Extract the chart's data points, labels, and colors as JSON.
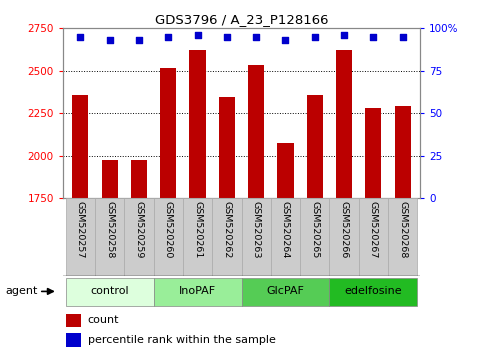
{
  "title": "GDS3796 / A_23_P128166",
  "categories": [
    "GSM520257",
    "GSM520258",
    "GSM520259",
    "GSM520260",
    "GSM520261",
    "GSM520262",
    "GSM520263",
    "GSM520264",
    "GSM520265",
    "GSM520266",
    "GSM520267",
    "GSM520268"
  ],
  "bar_values": [
    2355,
    1975,
    1975,
    2515,
    2620,
    2345,
    2535,
    2075,
    2355,
    2620,
    2280,
    2295
  ],
  "percentile_values": [
    95,
    93,
    93,
    95,
    96,
    95,
    95,
    93,
    95,
    96,
    95,
    95
  ],
  "bar_color": "#bb0000",
  "dot_color": "#0000cc",
  "ylim_left": [
    1750,
    2750
  ],
  "ylim_right": [
    0,
    100
  ],
  "yticks_left": [
    1750,
    2000,
    2250,
    2500,
    2750
  ],
  "yticks_right": [
    0,
    25,
    50,
    75,
    100
  ],
  "ytick_labels_right": [
    "0",
    "25",
    "50",
    "75",
    "100%"
  ],
  "groups": [
    {
      "label": "control",
      "start": 0,
      "end": 2,
      "color": "#ddffdd"
    },
    {
      "label": "InoPAF",
      "start": 3,
      "end": 5,
      "color": "#99ee99"
    },
    {
      "label": "GlcPAF",
      "start": 6,
      "end": 8,
      "color": "#55cc55"
    },
    {
      "label": "edelfosine",
      "start": 9,
      "end": 11,
      "color": "#22bb22"
    }
  ],
  "tick_label_bg": "#cccccc",
  "tick_label_edge": "#aaaaaa"
}
